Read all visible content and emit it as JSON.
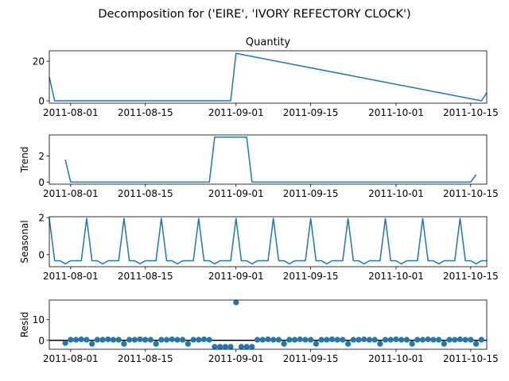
{
  "figure": {
    "suptitle": "Decomposition for ('EIRE', 'IVORY REFECTORY CLOCK')",
    "line_color": "#1f77b4"
  },
  "chart_data": [
    {
      "type": "line",
      "title": "Quantity",
      "ylabel": "",
      "x_start": "2011-07-28",
      "x_end": "2011-10-18",
      "ylim": [
        -1.2,
        25.3
      ],
      "yticks": [
        0,
        20
      ],
      "xticks": [
        "2011-08-01",
        "2011-08-15",
        "2011-09-01",
        "2011-09-15",
        "2011-10-01",
        "2011-10-15"
      ],
      "x": [
        "2011-07-28",
        "2011-07-29",
        "2011-08-30",
        "2011-08-31",
        "2011-09-01",
        "2011-10-17",
        "2011-10-18"
      ],
      "values": [
        12,
        0,
        0,
        0,
        24,
        0,
        4
      ]
    },
    {
      "type": "line",
      "title": "",
      "ylabel": "Trend",
      "x_start": "2011-07-28",
      "x_end": "2011-10-18",
      "ylim": [
        -0.16,
        3.6
      ],
      "yticks": [
        0,
        2
      ],
      "xticks": [
        "2011-08-01",
        "2011-08-15",
        "2011-09-01",
        "2011-09-15",
        "2011-10-01",
        "2011-10-15"
      ],
      "x": [
        "2011-07-31",
        "2011-08-01",
        "2011-08-27",
        "2011-08-28",
        "2011-09-03",
        "2011-09-04",
        "2011-10-15",
        "2011-10-16"
      ],
      "values": [
        1.71,
        0,
        0,
        3.43,
        3.43,
        0,
        0,
        0.57
      ]
    },
    {
      "type": "line",
      "title": "",
      "ylabel": "Seasonal",
      "x_start": "2011-07-28",
      "x_end": "2011-10-18",
      "ylim": [
        -0.65,
        2.05
      ],
      "yticks": [
        0,
        2
      ],
      "xticks": [
        "2011-08-01",
        "2011-08-15",
        "2011-09-01",
        "2011-09-15",
        "2011-10-01",
        "2011-10-15"
      ],
      "period_start": "2011-07-28",
      "pattern": [
        1.96,
        -0.33,
        -0.33,
        -0.5,
        -0.33,
        -0.33,
        -0.33
      ],
      "last_date": "2011-10-18"
    },
    {
      "type": "scatter",
      "title": "",
      "ylabel": "Resid",
      "x_start": "2011-07-28",
      "x_end": "2011-10-18",
      "ylim": [
        -4.3,
        19.5
      ],
      "yticks": [
        0,
        10
      ],
      "xticks": [
        "2011-08-01",
        "2011-08-15",
        "2011-09-01",
        "2011-09-15",
        "2011-10-01",
        "2011-10-15"
      ],
      "zero_line": true,
      "x_first": "2011-07-31",
      "values": [
        -1.3,
        0.3,
        0.3,
        0.5,
        0.3,
        -1.7,
        0.3,
        0.3,
        0.5,
        0.3,
        0.3,
        -1.7,
        0.3,
        0.3,
        0.5,
        0.3,
        0.3,
        -1.7,
        0.3,
        0.3,
        0.5,
        0.3,
        0.3,
        -1.7,
        0.3,
        0.3,
        0.5,
        0.3,
        -3.1,
        -3.1,
        -3.1,
        -3.1,
        18.3,
        -3.1,
        -3.1,
        -3.1,
        0.3,
        0.3,
        0.5,
        0.3,
        0.3,
        -1.7,
        0.3,
        0.3,
        0.5,
        0.3,
        0.3,
        -1.7,
        0.3,
        0.3,
        0.5,
        0.3,
        0.3,
        -1.7,
        0.3,
        0.3,
        0.5,
        0.3,
        0.3,
        -1.7,
        0.3,
        0.3,
        0.5,
        0.3,
        0.3,
        -1.7,
        0.3,
        0.3,
        0.5,
        0.3,
        0.3,
        -1.7,
        0.3,
        0.3,
        0.5,
        0.3,
        0.3,
        -1.7,
        0.3
      ]
    }
  ]
}
